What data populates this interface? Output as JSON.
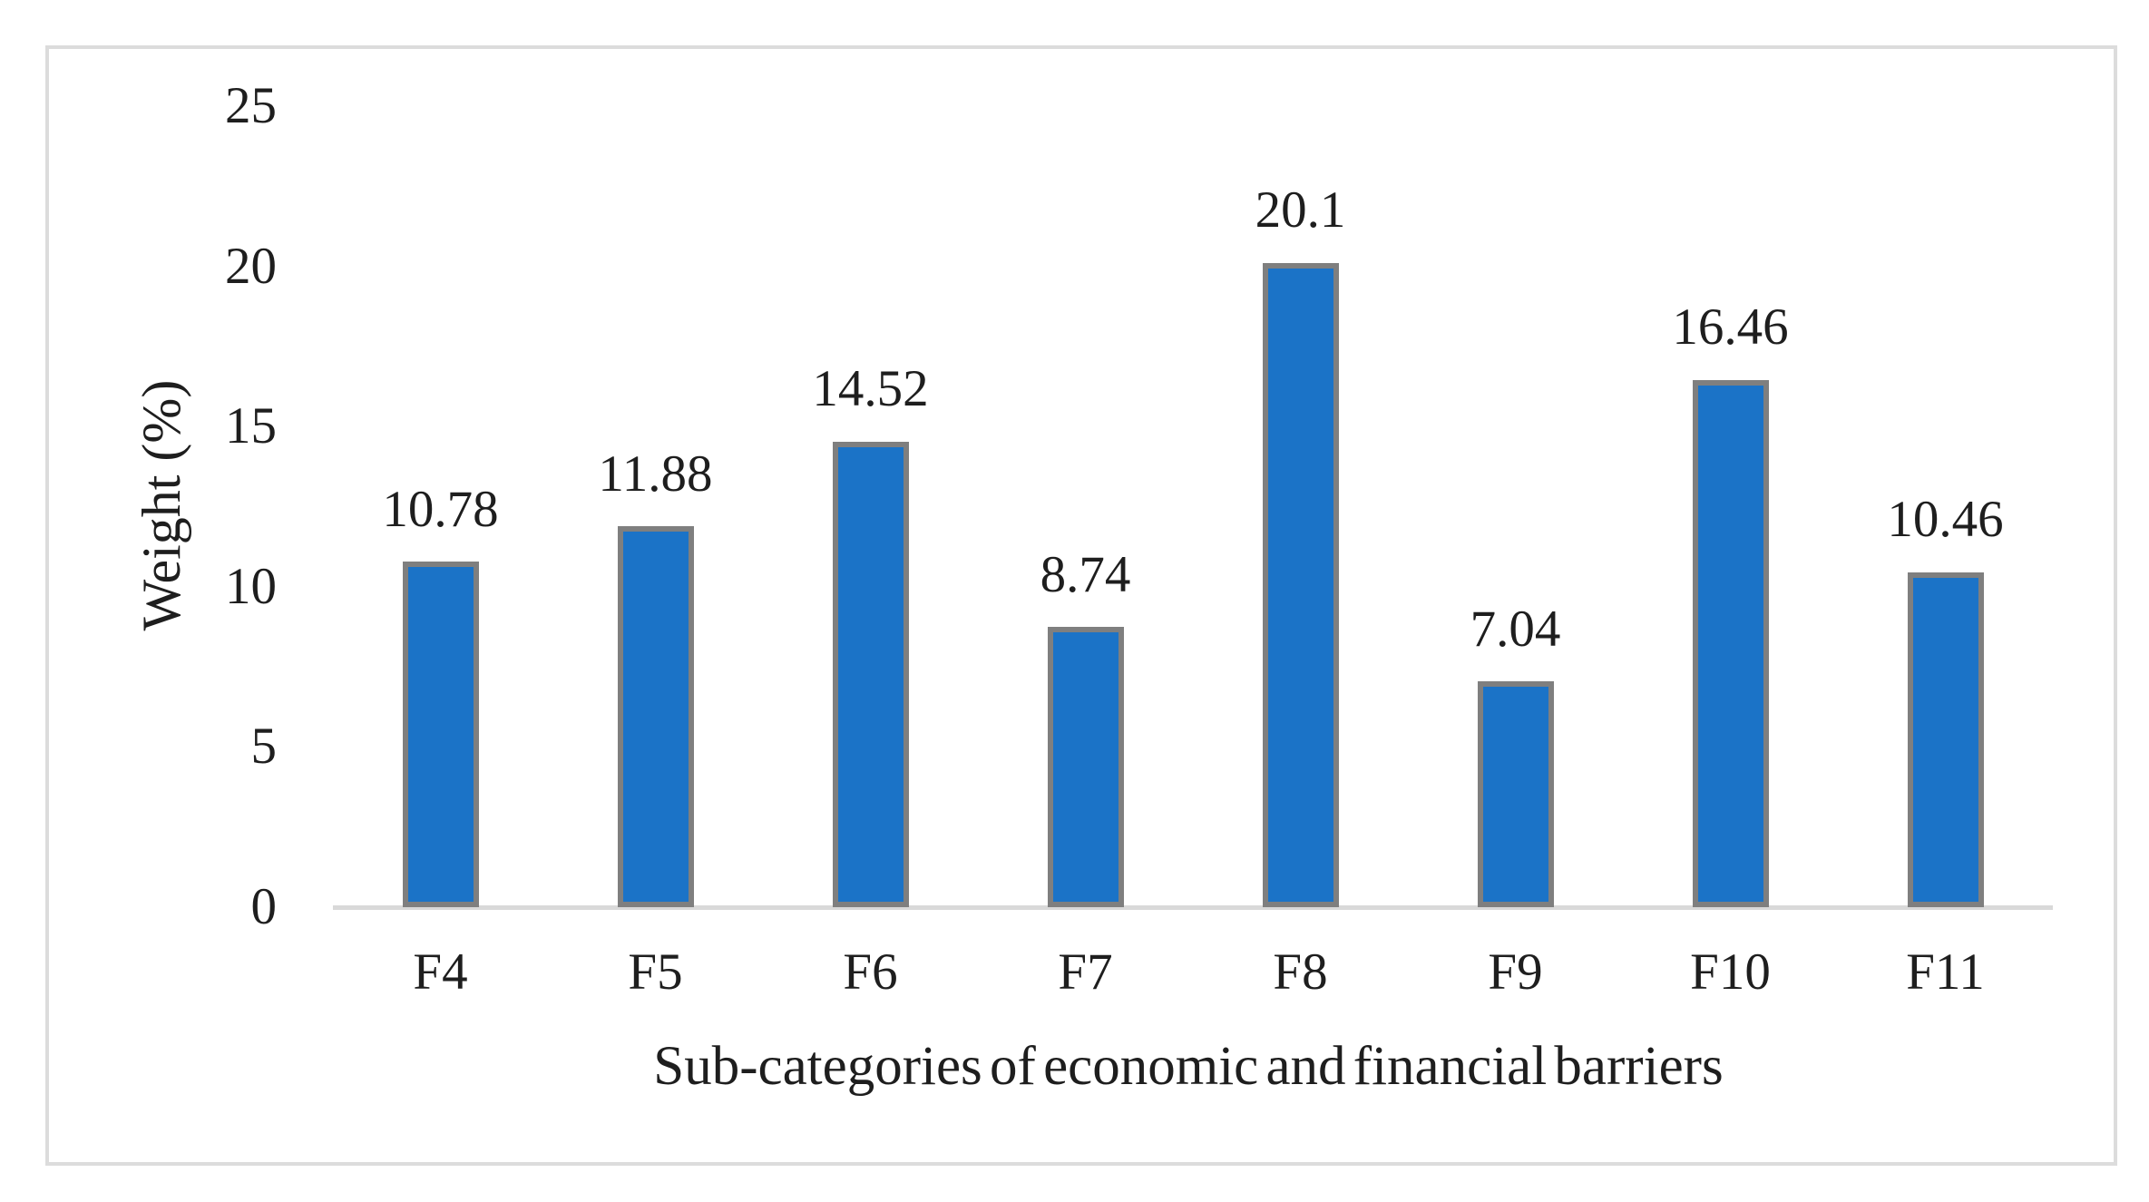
{
  "chart_data": {
    "type": "bar",
    "categories": [
      "F4",
      "F5",
      "F6",
      "F7",
      "F8",
      "F9",
      "F10",
      "F11"
    ],
    "values": [
      10.78,
      11.88,
      14.52,
      8.74,
      20.1,
      7.04,
      16.46,
      10.46
    ],
    "title": "",
    "xlabel": "Sub-categories of economic and financial barriers",
    "ylabel": "Weight (%)",
    "yticks": [
      0,
      5,
      10,
      15,
      20,
      25
    ],
    "ylim": [
      0,
      25
    ],
    "grid": "off",
    "legend": "none",
    "data_labels": "above-bars",
    "colors": {
      "bar_fill": "#1b73c7",
      "bar_border": "#7f7f7f",
      "axis_line": "#d9d9d9",
      "frame_border": "#dcdcdc",
      "text": "#1e1e1e",
      "background": "#ffffff"
    }
  }
}
